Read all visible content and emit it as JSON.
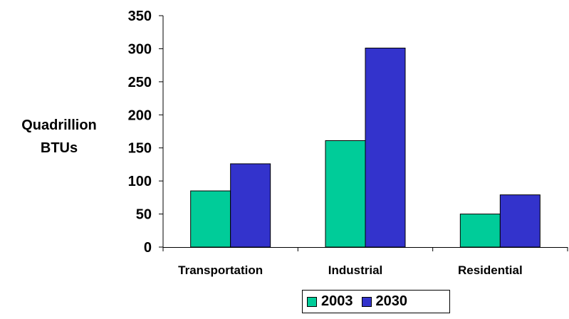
{
  "chart_data": {
    "type": "bar",
    "categories": [
      "Transportation",
      "Industrial",
      "Residential"
    ],
    "series": [
      {
        "name": "2003",
        "values": [
          85,
          161,
          50
        ],
        "color": "#00cc99"
      },
      {
        "name": "2030",
        "values": [
          126,
          301,
          79
        ],
        "color": "#3333cc"
      }
    ],
    "ylabel_lines": [
      "Quadrillion",
      "BTUs"
    ],
    "ylim": [
      0,
      350
    ],
    "yticks": [
      0,
      50,
      100,
      150,
      200,
      250,
      300,
      350
    ],
    "grid": false,
    "legend_position": "bottom"
  }
}
